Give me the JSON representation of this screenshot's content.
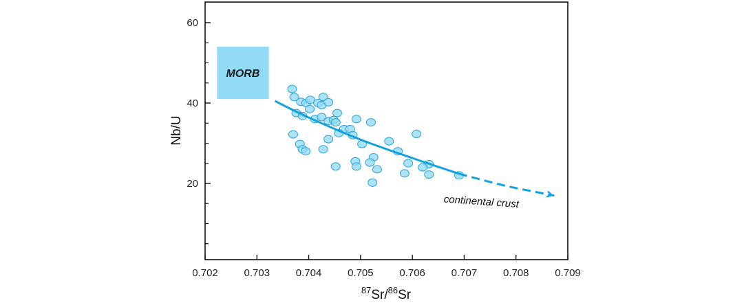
{
  "chart_data": {
    "type": "scatter",
    "title": "",
    "xlabel": {
      "sup1": "87",
      "text1": "Sr/",
      "sup2": "86",
      "text2": "Sr"
    },
    "ylabel": "Nb/U",
    "xlim": [
      0.702,
      0.709
    ],
    "ylim": [
      0,
      65
    ],
    "x_ticks": [
      0.702,
      0.703,
      0.704,
      0.705,
      0.706,
      0.707,
      0.708,
      0.709
    ],
    "x_tick_labels": [
      "0.702",
      "0.703",
      "0.704",
      "0.705",
      "0.706",
      "0.707",
      "0.708",
      "0.709"
    ],
    "y_ticks": [
      20,
      40,
      60
    ],
    "y_tick_labels": [
      "20",
      "40",
      "60"
    ],
    "y_minor_ticks": [
      5,
      10,
      15,
      25,
      30,
      35,
      45,
      50,
      55
    ],
    "colors": {
      "points": "#8fd8f2",
      "point_edge": "#29a3d9",
      "curve": "#12a1dc",
      "morb_box": "#91dbf7"
    },
    "series": [
      {
        "name": "samples",
        "points": [
          [
            0.70368,
            43.5
          ],
          [
            0.70372,
            41.5
          ],
          [
            0.70385,
            40.3
          ],
          [
            0.70395,
            40.0
          ],
          [
            0.70403,
            40.8
          ],
          [
            0.70402,
            38.5
          ],
          [
            0.70418,
            40.0
          ],
          [
            0.70425,
            39.5
          ],
          [
            0.70428,
            41.5
          ],
          [
            0.70438,
            40.2
          ],
          [
            0.70455,
            37.5
          ],
          [
            0.70376,
            37.5
          ],
          [
            0.70388,
            36.8
          ],
          [
            0.70412,
            36.0
          ],
          [
            0.70425,
            36.5
          ],
          [
            0.70438,
            35.5
          ],
          [
            0.70448,
            35.8
          ],
          [
            0.70452,
            35.2
          ],
          [
            0.70492,
            36.0
          ],
          [
            0.7052,
            35.2
          ],
          [
            0.70468,
            33.5
          ],
          [
            0.7048,
            33.5
          ],
          [
            0.70458,
            32.5
          ],
          [
            0.70485,
            32.0
          ],
          [
            0.7037,
            32.2
          ],
          [
            0.70608,
            32.3
          ],
          [
            0.70555,
            30.5
          ],
          [
            0.70438,
            31.0
          ],
          [
            0.70503,
            29.8
          ],
          [
            0.70383,
            29.8
          ],
          [
            0.70388,
            28.5
          ],
          [
            0.70394,
            28.0
          ],
          [
            0.70428,
            28.5
          ],
          [
            0.70572,
            28.0
          ],
          [
            0.70525,
            26.5
          ],
          [
            0.7049,
            25.5
          ],
          [
            0.70518,
            25.2
          ],
          [
            0.70592,
            25.0
          ],
          [
            0.70632,
            24.8
          ],
          [
            0.70452,
            24.2
          ],
          [
            0.70492,
            24.2
          ],
          [
            0.70532,
            23.5
          ],
          [
            0.7062,
            24.0
          ],
          [
            0.70585,
            22.5
          ],
          [
            0.70632,
            22.2
          ],
          [
            0.7069,
            22.0
          ],
          [
            0.70523,
            20.2
          ]
        ]
      }
    ],
    "trend_curve": {
      "solid": [
        [
          0.70335,
          40.5
        ],
        [
          0.704,
          36.4
        ],
        [
          0.705,
          30.9
        ],
        [
          0.706,
          26.3
        ],
        [
          0.7069,
          22.4
        ]
      ],
      "dashed": [
        [
          0.7069,
          22.4
        ],
        [
          0.7078,
          19.4
        ],
        [
          0.70865,
          17.2
        ]
      ],
      "arrow_end": [
        0.70868,
        17.1
      ]
    },
    "morb_box": {
      "x_range": [
        0.70223,
        0.70323
      ],
      "y_range": [
        41,
        54
      ],
      "label": "MORB"
    },
    "annotation": {
      "text": "continental crust",
      "x": 0.7074,
      "y": 16.5
    }
  }
}
